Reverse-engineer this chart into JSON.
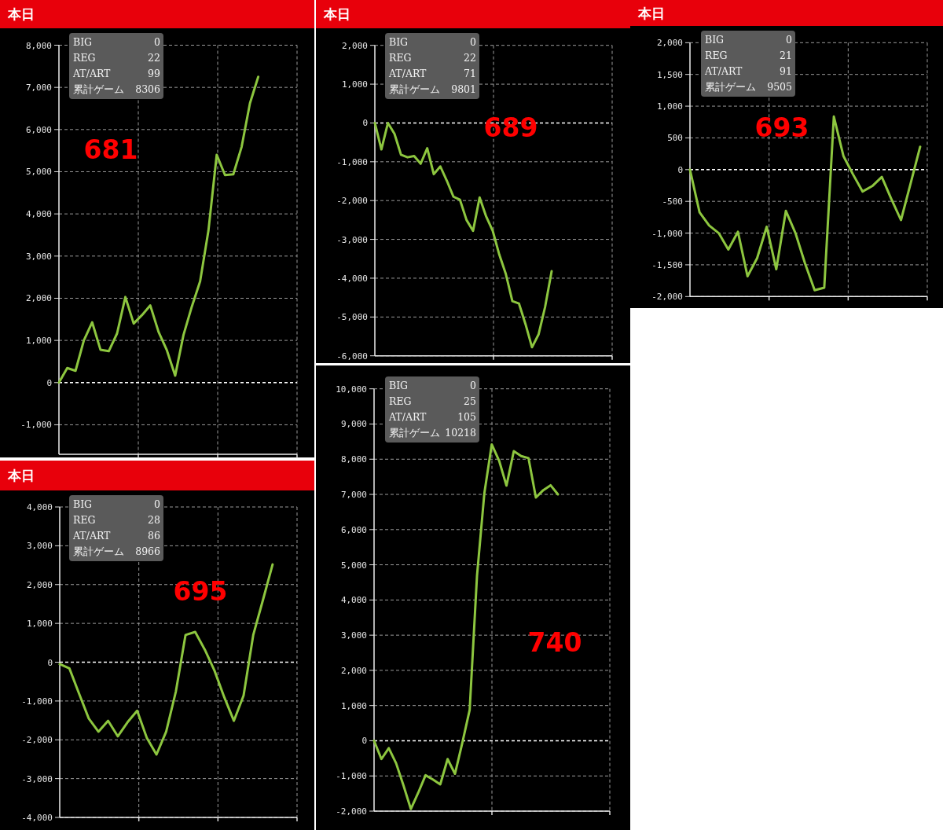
{
  "chart_data": [
    {
      "type": "line",
      "title": "本日",
      "annotations": [
        "BIG 0",
        "REG 22",
        "AT/ART 99",
        "累計ゲーム 8306",
        "681"
      ],
      "categories": [
        null,
        null,
        null,
        null,
        null,
        null,
        null,
        null,
        null,
        null,
        null,
        null,
        null,
        null,
        null,
        null,
        null,
        null,
        null,
        null,
        null,
        null,
        null,
        null,
        null
      ],
      "ref_lines": [
        {
          "axis": "y",
          "value": 0,
          "color": "#ffffff",
          "line_style": "dashed"
        }
      ],
      "ylim": [
        -1700,
        8000
      ],
      "yticks": [
        {
          "value": -1000,
          "label": "-1,000"
        },
        {
          "value": 0,
          "label": "0"
        },
        {
          "value": 1000,
          "label": "1,000"
        },
        {
          "value": 2000,
          "label": "2,000"
        },
        {
          "value": 3000,
          "label": "3,000"
        },
        {
          "value": 4000,
          "label": "4,000"
        },
        {
          "value": 5000,
          "label": "5,000"
        },
        {
          "value": 6000,
          "label": "6,000"
        },
        {
          "value": 7000,
          "label": "7,000"
        },
        {
          "value": 8000,
          "label": "8,000"
        }
      ],
      "tick_labels": "y",
      "grid": true,
      "marker": "none",
      "line_style": "solid",
      "series": [
        {
          "color": "#8dc63f",
          "values": [
            0,
            345,
            280,
            1000,
            1430,
            780,
            745,
            1165,
            2030,
            1400,
            1600,
            1830,
            1200,
            765,
            165,
            1130,
            1800,
            2400,
            3600,
            5400,
            4920,
            4940,
            5590,
            6620,
            7250
          ]
        }
      ]
    },
    {
      "type": "line",
      "title": "本日",
      "annotations": [
        "BIG 0",
        "REG 22",
        "AT/ART 71",
        "累計ゲーム 9801",
        "689"
      ],
      "categories": [
        null,
        null,
        null,
        null,
        null,
        null,
        null,
        null,
        null,
        null,
        null,
        null,
        null,
        null,
        null,
        null,
        null,
        null,
        null,
        null,
        null,
        null,
        null,
        null,
        null,
        null,
        null,
        null
      ],
      "ref_lines": [
        {
          "axis": "y",
          "value": 0,
          "color": "#ffffff",
          "line_style": "dashed"
        }
      ],
      "ylim": [
        -6000,
        2000
      ],
      "yticks": [
        {
          "value": -6000,
          "label": "-6,000"
        },
        {
          "value": -5000,
          "label": "-5,000"
        },
        {
          "value": -4000,
          "label": "-4,000"
        },
        {
          "value": -3000,
          "label": "-3,000"
        },
        {
          "value": -2000,
          "label": "-2,000"
        },
        {
          "value": -1000,
          "label": "-1,000"
        },
        {
          "value": 0,
          "label": "0"
        },
        {
          "value": 1000,
          "label": "1,000"
        },
        {
          "value": 2000,
          "label": "2,000"
        }
      ],
      "tick_labels": "y",
      "grid": true,
      "marker": "none",
      "line_style": "solid",
      "series": [
        {
          "color": "#8dc63f",
          "values": [
            0,
            -680,
            0,
            -280,
            -820,
            -885,
            -850,
            -1050,
            -650,
            -1320,
            -1120,
            -1490,
            -1900,
            -1980,
            -2500,
            -2780,
            -1920,
            -2410,
            -2780,
            -3390,
            -3890,
            -4590,
            -4650,
            -5180,
            -5780,
            -5450,
            -4740,
            -3820
          ]
        }
      ]
    },
    {
      "type": "line",
      "title": "本日",
      "annotations": [
        "BIG 0",
        "REG 21",
        "AT/ART 91",
        "累計ゲーム 9505",
        "693"
      ],
      "categories": [
        null,
        null,
        null,
        null,
        null,
        null,
        null,
        null,
        null,
        null,
        null,
        null,
        null,
        null,
        null,
        null,
        null,
        null,
        null,
        null,
        null,
        null,
        null,
        null,
        null
      ],
      "ref_lines": [
        {
          "axis": "y",
          "value": 0,
          "color": "#ffffff",
          "line_style": "dashed"
        }
      ],
      "ylim": [
        -2000,
        2000
      ],
      "yticks": [
        {
          "value": -2000,
          "label": "-2,000"
        },
        {
          "value": -1500,
          "label": "-1,500"
        },
        {
          "value": -1000,
          "label": "-1,000"
        },
        {
          "value": -500,
          "label": "-500"
        },
        {
          "value": 0,
          "label": "0"
        },
        {
          "value": 500,
          "label": "500"
        },
        {
          "value": 1000,
          "label": "1,000"
        },
        {
          "value": 1500,
          "label": "1,500"
        },
        {
          "value": 2000,
          "label": "2,000"
        }
      ],
      "tick_labels": "y",
      "grid": true,
      "marker": "none",
      "line_style": "solid",
      "series": [
        {
          "color": "#8dc63f",
          "values": [
            0,
            -673,
            -880,
            -1000,
            -1260,
            -980,
            -1680,
            -1395,
            -900,
            -1570,
            -650,
            -1000,
            -1480,
            -1900,
            -1860,
            835,
            215,
            -75,
            -345,
            -260,
            -115,
            -465,
            -795,
            -220,
            360
          ]
        }
      ]
    },
    {
      "type": "line",
      "title": "本日",
      "annotations": [
        "BIG 0",
        "REG 28",
        "AT/ART 86",
        "累計ゲーム 8966",
        "695"
      ],
      "categories": [
        null,
        null,
        null,
        null,
        null,
        null,
        null,
        null,
        null,
        null,
        null,
        null,
        null,
        null,
        null,
        null,
        null,
        null,
        null,
        null,
        null,
        null,
        null
      ],
      "ref_lines": [
        {
          "axis": "y",
          "value": 0,
          "color": "#ffffff",
          "line_style": "dashed"
        }
      ],
      "ylim": [
        -4000,
        4000
      ],
      "yticks": [
        {
          "value": -4000,
          "label": "-4,000"
        },
        {
          "value": -3000,
          "label": "-3,000"
        },
        {
          "value": -2000,
          "label": "-2,000"
        },
        {
          "value": -1000,
          "label": "-1,000"
        },
        {
          "value": 0,
          "label": "0"
        },
        {
          "value": 1000,
          "label": "1,000"
        },
        {
          "value": 2000,
          "label": "2,000"
        },
        {
          "value": 3000,
          "label": "3,000"
        },
        {
          "value": 4000,
          "label": "4,000"
        }
      ],
      "tick_labels": "y",
      "grid": true,
      "marker": "none",
      "line_style": "solid",
      "series": [
        {
          "color": "#8dc63f",
          "values": [
            -50,
            -160,
            -810,
            -1450,
            -1790,
            -1510,
            -1910,
            -1550,
            -1250,
            -1950,
            -2380,
            -1790,
            -760,
            700,
            780,
            320,
            -220,
            -900,
            -1510,
            -860,
            700,
            1600,
            2520
          ]
        }
      ]
    },
    {
      "type": "line",
      "annotations": [
        "BIG 0",
        "REG 25",
        "AT/ART 105",
        "累計ゲーム 10218",
        "740"
      ],
      "categories": [
        null,
        null,
        null,
        null,
        null,
        null,
        null,
        null,
        null,
        null,
        null,
        null,
        null,
        null,
        null,
        null,
        null,
        null,
        null,
        null,
        null,
        null,
        null,
        null,
        null,
        null
      ],
      "ref_lines": [
        {
          "axis": "y",
          "value": 0,
          "color": "#ffffff",
          "line_style": "dashed"
        }
      ],
      "ylim": [
        -2000,
        10000
      ],
      "yticks": [
        {
          "value": -2000,
          "label": "-2,000"
        },
        {
          "value": -1000,
          "label": "-1,000"
        },
        {
          "value": 0,
          "label": "0"
        },
        {
          "value": 1000,
          "label": "1,000"
        },
        {
          "value": 2000,
          "label": "2,000"
        },
        {
          "value": 3000,
          "label": "3,000"
        },
        {
          "value": 4000,
          "label": "4,000"
        },
        {
          "value": 5000,
          "label": "5,000"
        },
        {
          "value": 6000,
          "label": "6,000"
        },
        {
          "value": 7000,
          "label": "7,000"
        },
        {
          "value": 8000,
          "label": "8,000"
        },
        {
          "value": 9000,
          "label": "9,000"
        },
        {
          "value": 10000,
          "label": "10,000"
        }
      ],
      "tick_labels": "y",
      "grid": true,
      "marker": "none",
      "line_style": "solid",
      "series": [
        {
          "color": "#8dc63f",
          "values": [
            0,
            -520,
            -210,
            -640,
            -1270,
            -1940,
            -1480,
            -980,
            -1100,
            -1240,
            -520,
            -940,
            -60,
            880,
            4700,
            7040,
            8420,
            7960,
            7250,
            8230,
            8090,
            8030,
            6910,
            7120,
            7260,
            7000
          ]
        }
      ]
    }
  ]
}
